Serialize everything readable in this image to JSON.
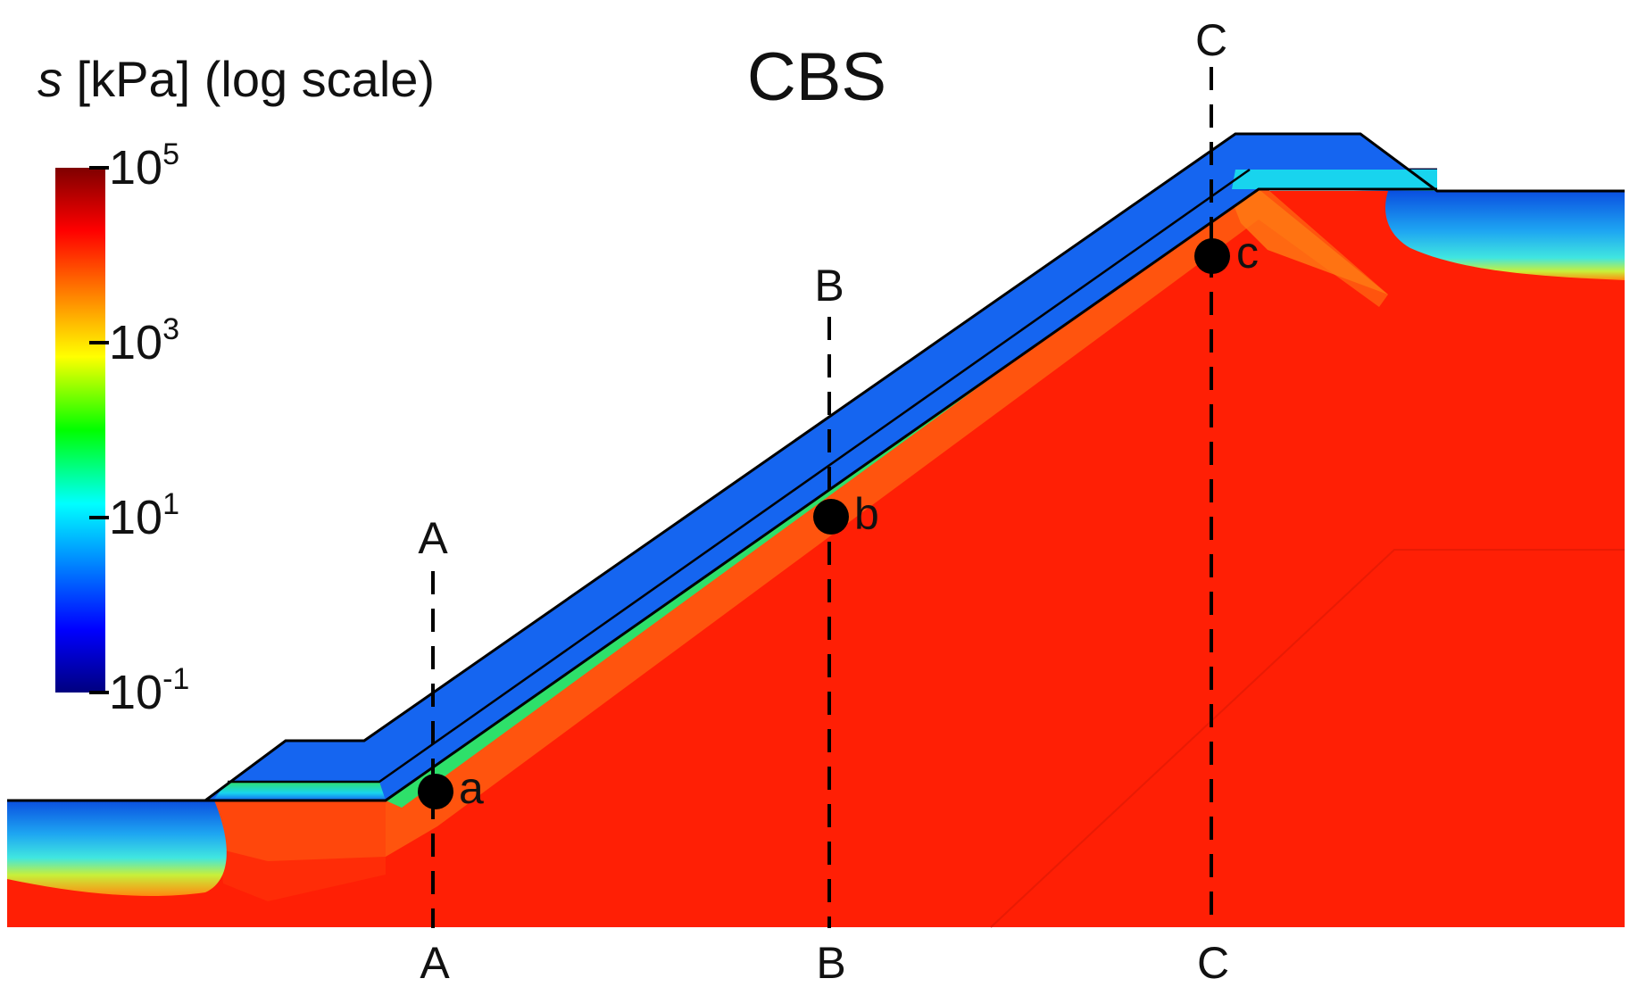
{
  "figure": {
    "title": "CBS"
  },
  "colorbar": {
    "label_symbol": "s",
    "label_rest": " [kPa] (log scale)",
    "scale": "log",
    "colormap": "jet",
    "ticks": [
      {
        "base": "10",
        "exp": "5"
      },
      {
        "base": "10",
        "exp": "3"
      },
      {
        "base": "10",
        "exp": "1"
      },
      {
        "base": "10",
        "exp": "-1"
      }
    ]
  },
  "sections": [
    {
      "name": "A",
      "top_label": "A",
      "bottom_label": "A"
    },
    {
      "name": "B",
      "top_label": "B",
      "bottom_label": "B"
    },
    {
      "name": "C",
      "top_label": "C",
      "bottom_label": "C"
    }
  ],
  "points": [
    {
      "label": "a",
      "section": "A"
    },
    {
      "label": "b",
      "section": "B"
    },
    {
      "label": "c",
      "section": "C"
    }
  ],
  "colors": {
    "cover_layer": "#1565f0",
    "interface_cyan": "#18d4ee",
    "interface_green": "#2ee06a",
    "slope_orange": "#ff5a10",
    "body_red": "#ff1f05",
    "outline": "#000000"
  }
}
